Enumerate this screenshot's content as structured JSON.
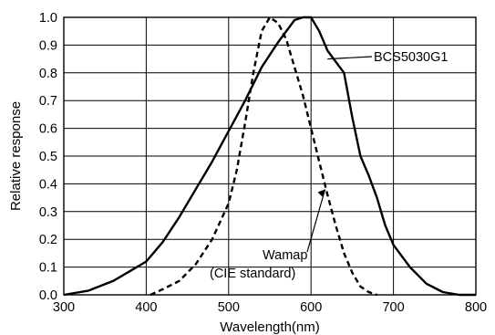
{
  "chart_data": {
    "type": "line",
    "title": "",
    "xlabel": "Wavelength(nm)",
    "ylabel": "Relative response",
    "xlim": [
      300,
      800
    ],
    "ylim": [
      0,
      1.0
    ],
    "xticks": [
      "300",
      "400",
      "500",
      "600",
      "700",
      "800"
    ],
    "yticks": [
      "0.0",
      "0.1",
      "0.2",
      "0.3",
      "0.4",
      "0.5",
      "0.6",
      "0.7",
      "0.8",
      "0.9",
      "1.0"
    ],
    "grid": true,
    "legend": "none",
    "series": [
      {
        "name": "BCS5030G1",
        "style": "solid",
        "x": [
          300,
          330,
          360,
          380,
          400,
          420,
          440,
          460,
          480,
          500,
          520,
          540,
          560,
          580,
          590,
          600,
          610,
          620,
          630,
          640,
          650,
          660,
          670,
          680,
          690,
          700,
          720,
          740,
          760,
          780,
          800
        ],
        "y": [
          0.0,
          0.015,
          0.05,
          0.085,
          0.12,
          0.19,
          0.28,
          0.38,
          0.48,
          0.59,
          0.7,
          0.82,
          0.91,
          0.99,
          1.0,
          1.0,
          0.95,
          0.88,
          0.84,
          0.8,
          0.64,
          0.5,
          0.43,
          0.35,
          0.25,
          0.18,
          0.1,
          0.04,
          0.01,
          0.0,
          0.0
        ]
      },
      {
        "name": "Wamap (CIE standard)",
        "style": "dashed",
        "x": [
          405,
          420,
          440,
          460,
          480,
          500,
          510,
          520,
          530,
          540,
          550,
          560,
          570,
          580,
          590,
          600,
          610,
          620,
          630,
          640,
          650,
          660,
          670,
          680
        ],
        "y": [
          0.0,
          0.02,
          0.05,
          0.11,
          0.2,
          0.33,
          0.45,
          0.62,
          0.8,
          0.95,
          1.0,
          0.98,
          0.92,
          0.82,
          0.72,
          0.6,
          0.48,
          0.36,
          0.25,
          0.15,
          0.08,
          0.03,
          0.01,
          0.0
        ]
      }
    ],
    "annotations": [
      {
        "text": "BCS5030G1",
        "x": 620,
        "y": 0.84
      },
      {
        "text": "Wamap",
        "x": 610,
        "y": 0.48
      },
      {
        "text": "(CIE standard)",
        "x": 610,
        "y": 0.48
      }
    ]
  }
}
